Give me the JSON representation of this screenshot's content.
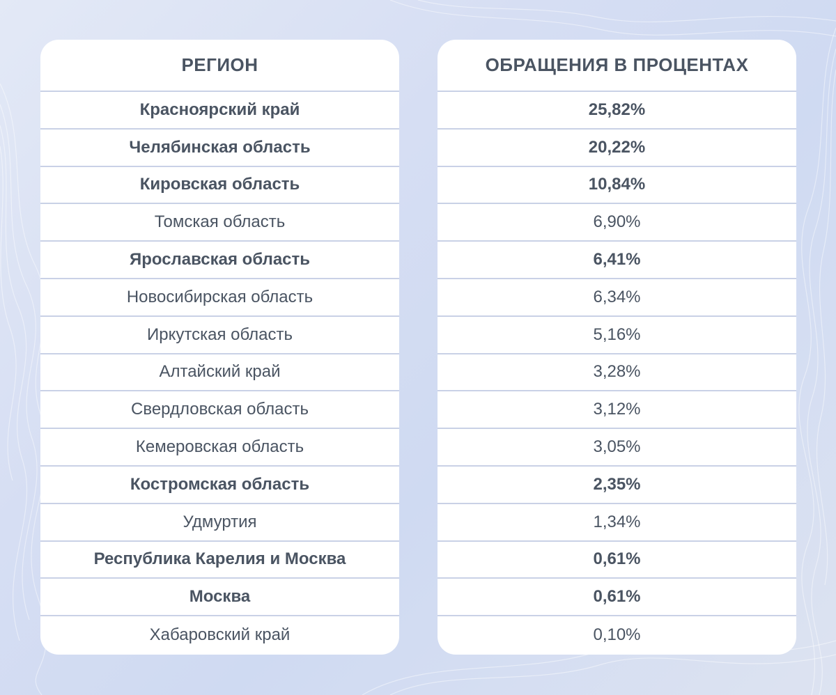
{
  "table": {
    "headers": {
      "region": "РЕГИОН",
      "percent": "ОБРАЩЕНИЯ В ПРОЦЕНТАХ"
    },
    "rows": [
      {
        "region": "Красноярский край",
        "percent": "25,82%",
        "bold": true
      },
      {
        "region": "Челябинская область",
        "percent": "20,22%",
        "bold": true
      },
      {
        "region": "Кировская область",
        "percent": "10,84%",
        "bold": true
      },
      {
        "region": "Томская область",
        "percent": "6,90%",
        "bold": false
      },
      {
        "region": "Ярославская область",
        "percent": "6,41%",
        "bold": true
      },
      {
        "region": "Новосибирская область",
        "percent": "6,34%",
        "bold": false
      },
      {
        "region": "Иркутская область",
        "percent": "5,16%",
        "bold": false
      },
      {
        "region": "Алтайский край",
        "percent": "3,28%",
        "bold": false
      },
      {
        "region": "Свердловская область",
        "percent": "3,12%",
        "bold": false
      },
      {
        "region": "Кемеровская область",
        "percent": "3,05%",
        "bold": false
      },
      {
        "region": "Костромская область",
        "percent": "2,35%",
        "bold": true
      },
      {
        "region": "Удмуртия",
        "percent": "1,34%",
        "bold": false
      },
      {
        "region": "Республика Карелия и Москва",
        "percent": "0,61%",
        "bold": true
      },
      {
        "region": "Москва",
        "percent": "0,61%",
        "bold": true
      },
      {
        "region": "Хабаровский край",
        "percent": "0,10%",
        "bold": false
      }
    ]
  },
  "colors": {
    "text": "#4a5462",
    "divider": "#c9d1e6",
    "card": "#ffffff"
  }
}
